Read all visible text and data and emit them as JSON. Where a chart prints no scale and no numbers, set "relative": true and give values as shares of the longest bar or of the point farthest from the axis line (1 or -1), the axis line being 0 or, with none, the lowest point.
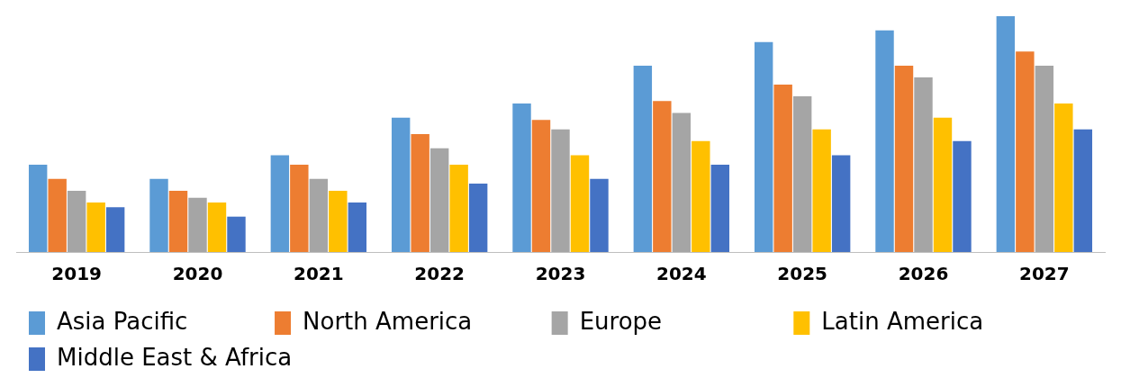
{
  "chart_data": {
    "type": "bar",
    "relative": true,
    "categories": [
      "2019",
      "2020",
      "2021",
      "2022",
      "2023",
      "2024",
      "2025",
      "2026",
      "2027"
    ],
    "series": [
      {
        "name": "Asia Pacific",
        "color": "#5b9bd5",
        "values": [
          0.37,
          0.31,
          0.41,
          0.57,
          0.63,
          0.79,
          0.89,
          0.94,
          1
        ]
      },
      {
        "name": "North America",
        "color": "#ed7d31",
        "values": [
          0.31,
          0.26,
          0.37,
          0.5,
          0.56,
          0.64,
          0.71,
          0.79,
          0.85
        ]
      },
      {
        "name": "Europe",
        "color": "#a5a5a5",
        "values": [
          0.26,
          0.23,
          0.31,
          0.44,
          0.52,
          0.59,
          0.66,
          0.74,
          0.79
        ]
      },
      {
        "name": "Latin America",
        "color": "#ffc000",
        "values": [
          0.21,
          0.21,
          0.26,
          0.37,
          0.41,
          0.47,
          0.52,
          0.57,
          0.63
        ]
      },
      {
        "name": "Middle East & Africa",
        "color": "#4472c4",
        "values": [
          0.19,
          0.15,
          0.21,
          0.29,
          0.31,
          0.37,
          0.41,
          0.47,
          0.52
        ]
      }
    ],
    "grid": false,
    "legend": "bottom"
  }
}
